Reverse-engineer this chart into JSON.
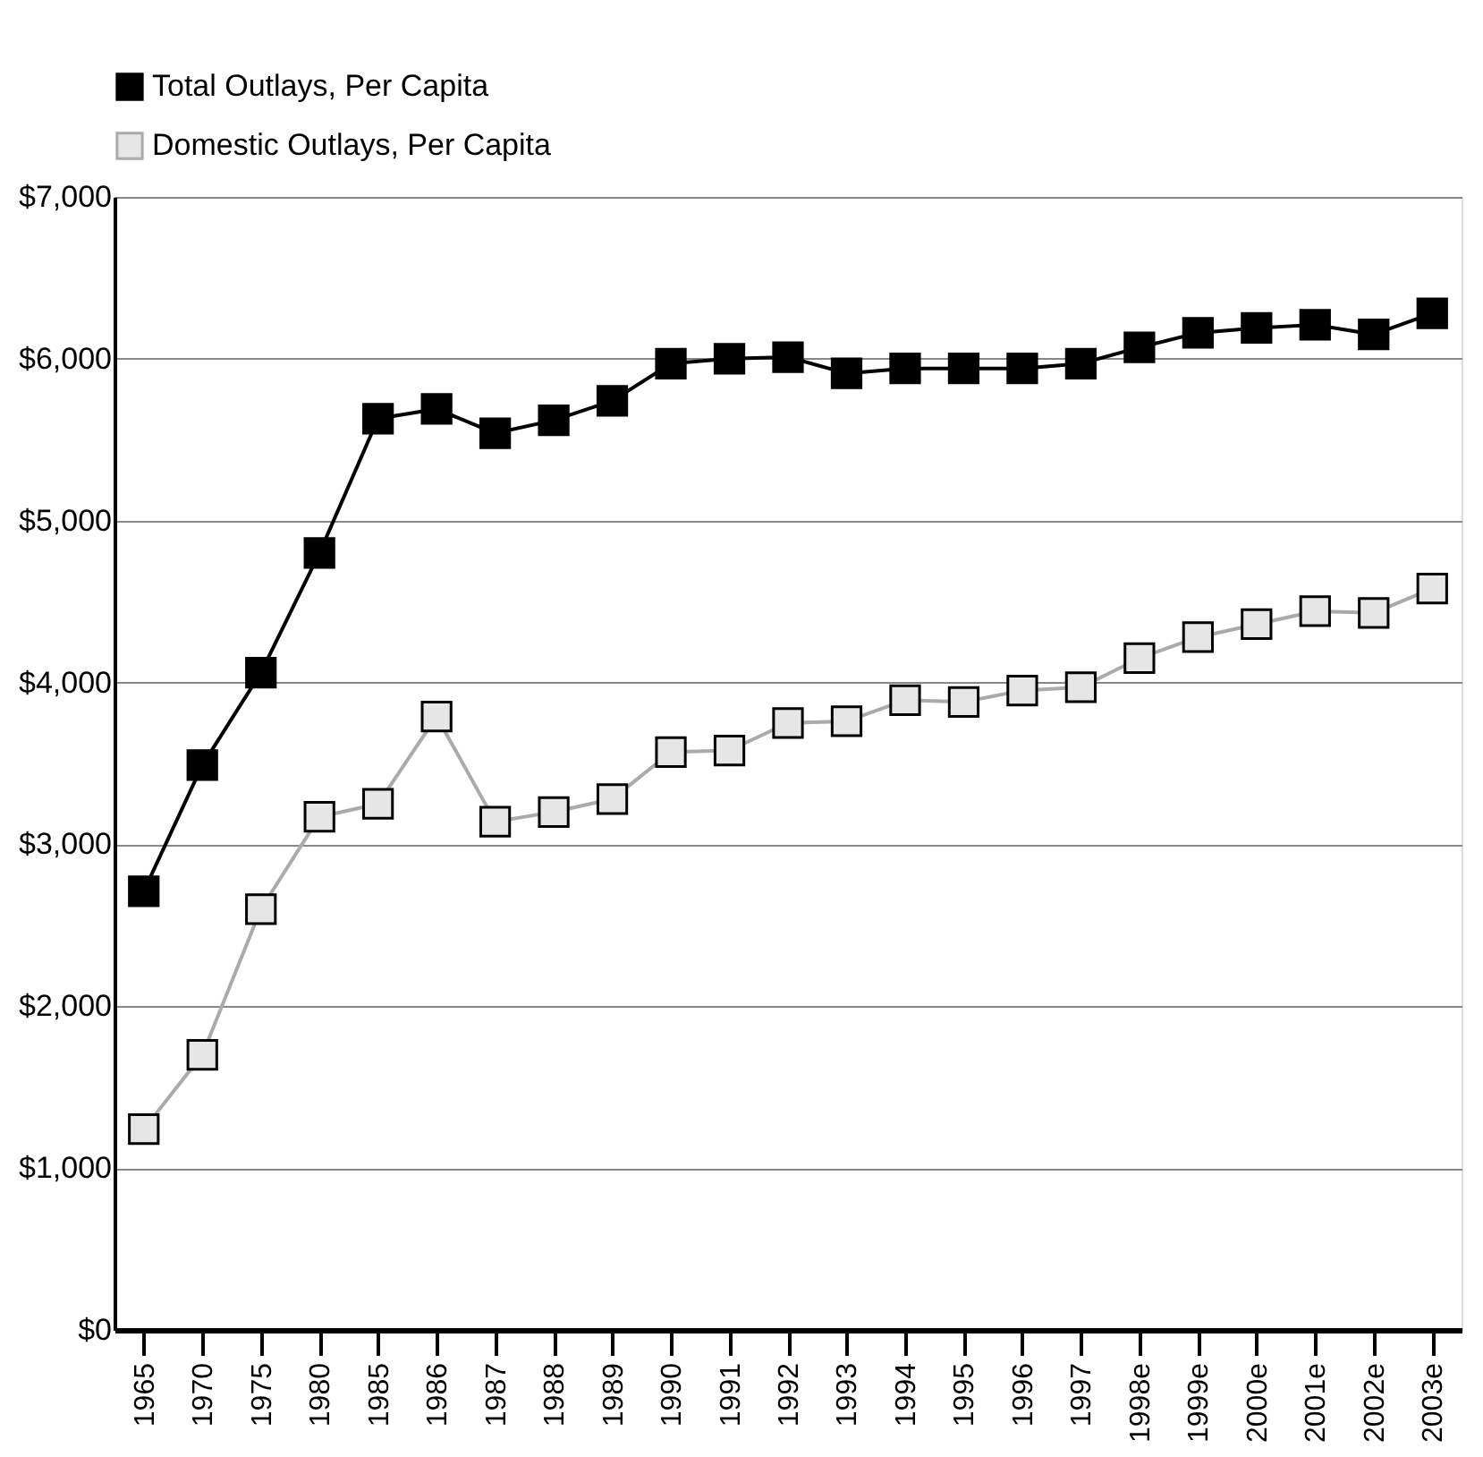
{
  "chart_data": {
    "type": "line",
    "categories": [
      "1965",
      "1970",
      "1975",
      "1980",
      "1985",
      "1986",
      "1987",
      "1988",
      "1989",
      "1990",
      "1991",
      "1992",
      "1993",
      "1994",
      "1995",
      "1996",
      "1997",
      "1998e",
      "1999e",
      "2000e",
      "2001e",
      "2002e",
      "2003e"
    ],
    "series": [
      {
        "name": "Total Outlays, Per Capita",
        "color": "#000000",
        "values": [
          2710,
          3490,
          4060,
          4800,
          5630,
          5690,
          5540,
          5620,
          5740,
          5970,
          6000,
          6010,
          5910,
          5940,
          5940,
          5940,
          5970,
          6070,
          6160,
          6190,
          6210,
          6150,
          6280
        ]
      },
      {
        "name": "Domestic Outlays, Per Capita",
        "color": "#aaaaaa",
        "values": [
          1240,
          1700,
          2600,
          3170,
          3250,
          3790,
          3140,
          3200,
          3280,
          3570,
          3580,
          3750,
          3760,
          3890,
          3880,
          3950,
          3970,
          4150,
          4280,
          4360,
          4440,
          4430,
          4580
        ]
      }
    ],
    "ylim": [
      0,
      7000
    ],
    "yticks": [
      {
        "value": 0,
        "label": "$0"
      },
      {
        "value": 1000,
        "label": "$1,000"
      },
      {
        "value": 2000,
        "label": "$2,000"
      },
      {
        "value": 3000,
        "label": "$3,000"
      },
      {
        "value": 4000,
        "label": "$4,000"
      },
      {
        "value": 5000,
        "label": "$5,000"
      },
      {
        "value": 6000,
        "label": "$6,000"
      },
      {
        "value": 7000,
        "label": "$7,000"
      }
    ],
    "grid": "y",
    "legend": "top",
    "marker": "square",
    "line_style": "solid"
  }
}
